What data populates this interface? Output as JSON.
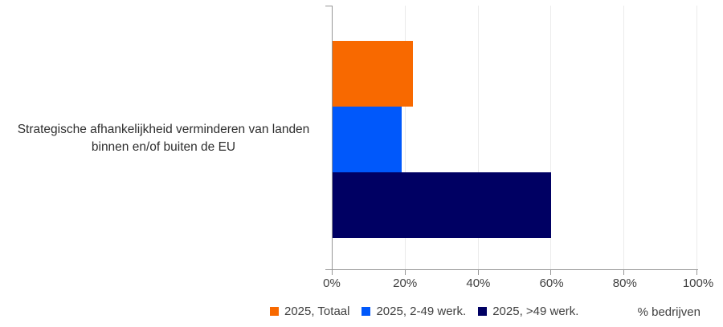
{
  "chart_data": {
    "type": "bar",
    "orientation": "horizontal",
    "categories": [
      "Strategische afhankelijkheid verminderen van landen binnen en/of buiten de EU"
    ],
    "series": [
      {
        "name": "2025, Totaal",
        "color": "#F86900",
        "values": [
          22
        ]
      },
      {
        "name": "2025, 2-49 werk.",
        "color": "#0058FB",
        "values": [
          19
        ]
      },
      {
        "name": "2025, >49 werk.",
        "color": "#000063",
        "values": [
          60
        ]
      }
    ],
    "xlabel": "% bedrijven",
    "xlim": [
      0,
      100
    ],
    "x_ticks": [
      "0%",
      "20%",
      "40%",
      "60%",
      "80%",
      "100%"
    ],
    "grid": true,
    "legend_position": "bottom",
    "axis_color": "#969696",
    "gridline_color": "#ebebeb",
    "text_color": "#404040"
  },
  "category_label": {
    "line1": "Strategische afhankelijkheid verminderen van landen",
    "line2": "binnen en/of buiten de EU"
  }
}
